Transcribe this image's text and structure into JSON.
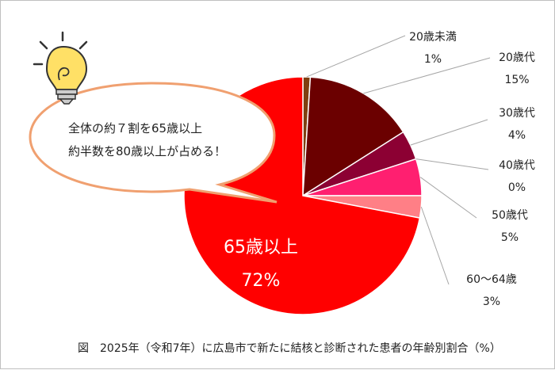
{
  "chart_data": {
    "type": "pie",
    "title": "",
    "categories": [
      "20歳未満",
      "20歳代",
      "30歳代",
      "40歳代",
      "50歳代",
      "60～64歳",
      "65歳以上"
    ],
    "values": [
      1,
      15,
      4,
      0,
      5,
      3,
      72
    ],
    "value_labels": [
      "1%",
      "15%",
      "4%",
      "0%",
      "5%",
      "3%",
      "72%"
    ],
    "colors": [
      "#7f3f10",
      "#6b0000",
      "#8c0033",
      "#c0004a",
      "#ff1f70",
      "#ff7f86",
      "#ff0000"
    ],
    "legend": "none",
    "annotation": {
      "line1": "全体の約７割を65歳以上",
      "line2": "約半数を80歳以上が占める！"
    }
  },
  "caption": "図　2025年（令和7年）に広島市で新たに結核と診断された患者の年齢別割合（%）"
}
